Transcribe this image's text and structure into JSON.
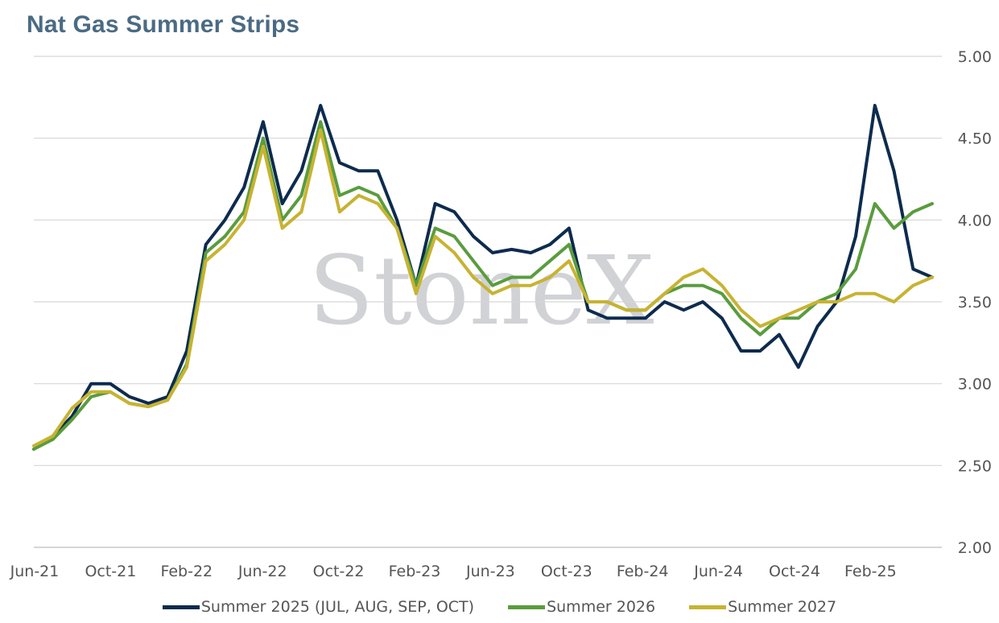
{
  "chart_data": {
    "type": "line",
    "title": "Nat Gas Summer Strips",
    "xlabel": "",
    "ylabel": "",
    "watermark": "StoneX",
    "ylim": [
      2.0,
      5.0
    ],
    "y_ticks": [
      "5.00",
      "4.50",
      "4.00",
      "3.50",
      "3.00",
      "2.50",
      "2.00"
    ],
    "y_tick_values": [
      5.0,
      4.5,
      4.0,
      3.5,
      3.0,
      2.5,
      2.0
    ],
    "x_ticks": [
      "Jun-21",
      "Oct-21",
      "Feb-22",
      "Jun-22",
      "Oct-22",
      "Feb-23",
      "Jun-23",
      "Oct-23",
      "Feb-24",
      "Jun-24",
      "Oct-24",
      "Feb-25"
    ],
    "x_range": [
      "2021-06",
      "2025-05"
    ],
    "y_axis_position": "right",
    "grid": "horizontal",
    "legend_position": "bottom",
    "x": [
      "2021-06",
      "2021-07",
      "2021-08",
      "2021-09",
      "2021-10",
      "2021-11",
      "2021-12",
      "2022-01",
      "2022-02",
      "2022-03",
      "2022-04",
      "2022-05",
      "2022-06",
      "2022-07",
      "2022-08",
      "2022-09",
      "2022-10",
      "2022-11",
      "2022-12",
      "2023-01",
      "2023-02",
      "2023-03",
      "2023-04",
      "2023-05",
      "2023-06",
      "2023-07",
      "2023-08",
      "2023-09",
      "2023-10",
      "2023-11",
      "2023-12",
      "2024-01",
      "2024-02",
      "2024-03",
      "2024-04",
      "2024-05",
      "2024-06",
      "2024-07",
      "2024-08",
      "2024-09",
      "2024-10",
      "2024-11",
      "2024-12",
      "2025-01",
      "2025-02",
      "2025-03",
      "2025-04",
      "2025-05"
    ],
    "series": [
      {
        "name": "Summer 2025 (JUL, AUG, SEP, OCT)",
        "color": "#0d2b4e",
        "values": [
          2.6,
          2.68,
          2.8,
          3.0,
          3.0,
          2.92,
          2.88,
          2.92,
          3.2,
          3.85,
          4.0,
          4.2,
          4.6,
          4.1,
          4.3,
          4.7,
          4.35,
          4.3,
          4.3,
          4.0,
          3.6,
          4.1,
          4.05,
          3.9,
          3.8,
          3.82,
          3.8,
          3.85,
          3.95,
          3.45,
          3.4,
          3.4,
          3.4,
          3.5,
          3.45,
          3.5,
          3.4,
          3.2,
          3.2,
          3.3,
          3.1,
          3.35,
          3.5,
          3.9,
          4.7,
          4.3,
          3.7,
          3.65
        ]
      },
      {
        "name": "Summer 2026",
        "color": "#5a9c3e",
        "values": [
          2.6,
          2.66,
          2.78,
          2.92,
          2.95,
          2.88,
          2.86,
          2.9,
          3.12,
          3.8,
          3.9,
          4.05,
          4.5,
          4.0,
          4.15,
          4.6,
          4.15,
          4.2,
          4.15,
          3.95,
          3.6,
          3.95,
          3.9,
          3.75,
          3.6,
          3.65,
          3.65,
          3.75,
          3.85,
          3.5,
          3.5,
          3.45,
          3.45,
          3.55,
          3.6,
          3.6,
          3.55,
          3.4,
          3.3,
          3.4,
          3.4,
          3.5,
          3.55,
          3.7,
          4.1,
          3.95,
          4.05,
          4.1
        ]
      },
      {
        "name": "Summer 2027",
        "color": "#c7b332",
        "values": [
          2.62,
          2.68,
          2.85,
          2.95,
          2.95,
          2.88,
          2.86,
          2.9,
          3.1,
          3.75,
          3.85,
          4.0,
          4.45,
          3.95,
          4.05,
          4.55,
          4.05,
          4.15,
          4.1,
          3.95,
          3.55,
          3.9,
          3.8,
          3.65,
          3.55,
          3.6,
          3.6,
          3.65,
          3.75,
          3.5,
          3.5,
          3.45,
          3.45,
          3.55,
          3.65,
          3.7,
          3.6,
          3.45,
          3.35,
          3.4,
          3.45,
          3.5,
          3.5,
          3.55,
          3.55,
          3.5,
          3.6,
          3.65
        ]
      }
    ]
  }
}
